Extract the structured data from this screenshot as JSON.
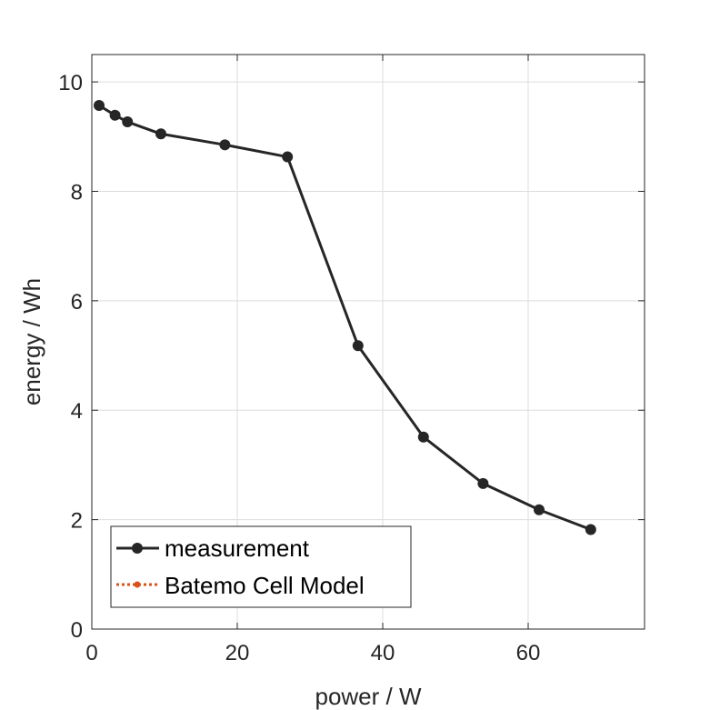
{
  "chart_data": {
    "type": "line",
    "xlabel": "power / W",
    "ylabel": "energy / Wh",
    "xlim": [
      0,
      76
    ],
    "ylim": [
      0,
      10.5
    ],
    "xticks": [
      0,
      20,
      40,
      60
    ],
    "yticks": [
      0,
      2,
      4,
      6,
      8,
      10
    ],
    "grid": true,
    "legend_position": "bottom-left",
    "series": [
      {
        "name": "measurement",
        "color": "#262626",
        "marker": "circle",
        "line_style": "solid",
        "x": [
          1.0,
          3.2,
          4.9,
          9.5,
          18.3,
          26.9,
          36.6,
          45.6,
          53.8,
          61.5,
          68.6
        ],
        "y": [
          9.57,
          9.39,
          9.27,
          9.05,
          8.85,
          8.63,
          5.18,
          3.51,
          2.66,
          2.18,
          1.82
        ]
      },
      {
        "name": "Batemo Cell Model",
        "color": "#D95319",
        "marker": "dot",
        "line_style": "dotted",
        "x": [],
        "y": []
      }
    ]
  }
}
